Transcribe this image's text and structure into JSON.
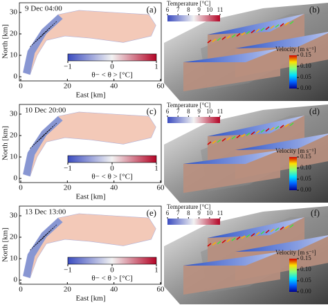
{
  "map_panels": [
    {
      "label": "(a)",
      "date": "9 Dec 04:00"
    },
    {
      "label": "(c)",
      "date": "10 Dec 20:00"
    },
    {
      "label": "(e)",
      "date": "13 Dec 13:00"
    }
  ],
  "map_axes": {
    "x_label": "East [km]",
    "y_label": "North [km]",
    "xlim": [
      0,
      60
    ],
    "ylim": [
      0,
      30
    ],
    "xticks": [
      0,
      20,
      40,
      60
    ],
    "yticks": [
      0,
      10,
      20,
      30
    ]
  },
  "anomaly_colorbar": {
    "label": "θ− < θ > [°C]",
    "lim": [
      -1,
      1
    ],
    "ticks": [
      {
        "value": -1,
        "label": "−1"
      },
      0,
      1
    ]
  },
  "render_panels": [
    {
      "label": "(b)"
    },
    {
      "label": "(d)"
    },
    {
      "label": "(f)"
    }
  ],
  "temperature_colorbar": {
    "label": "Temperature [°C]",
    "lim": [
      6,
      11
    ],
    "ticks": [
      6,
      7,
      8,
      9,
      10,
      11
    ]
  },
  "velocity_colorbar": {
    "label": "Velocity [m s⁻¹]",
    "lim": [
      0,
      0.15
    ],
    "ticks": [
      {
        "value": 0,
        "label": "0.00"
      },
      {
        "value": 0.05,
        "label": "0.05"
      },
      {
        "value": 0.1,
        "label": "0.10"
      },
      {
        "value": 0.15,
        "label": "0.15"
      }
    ]
  }
}
